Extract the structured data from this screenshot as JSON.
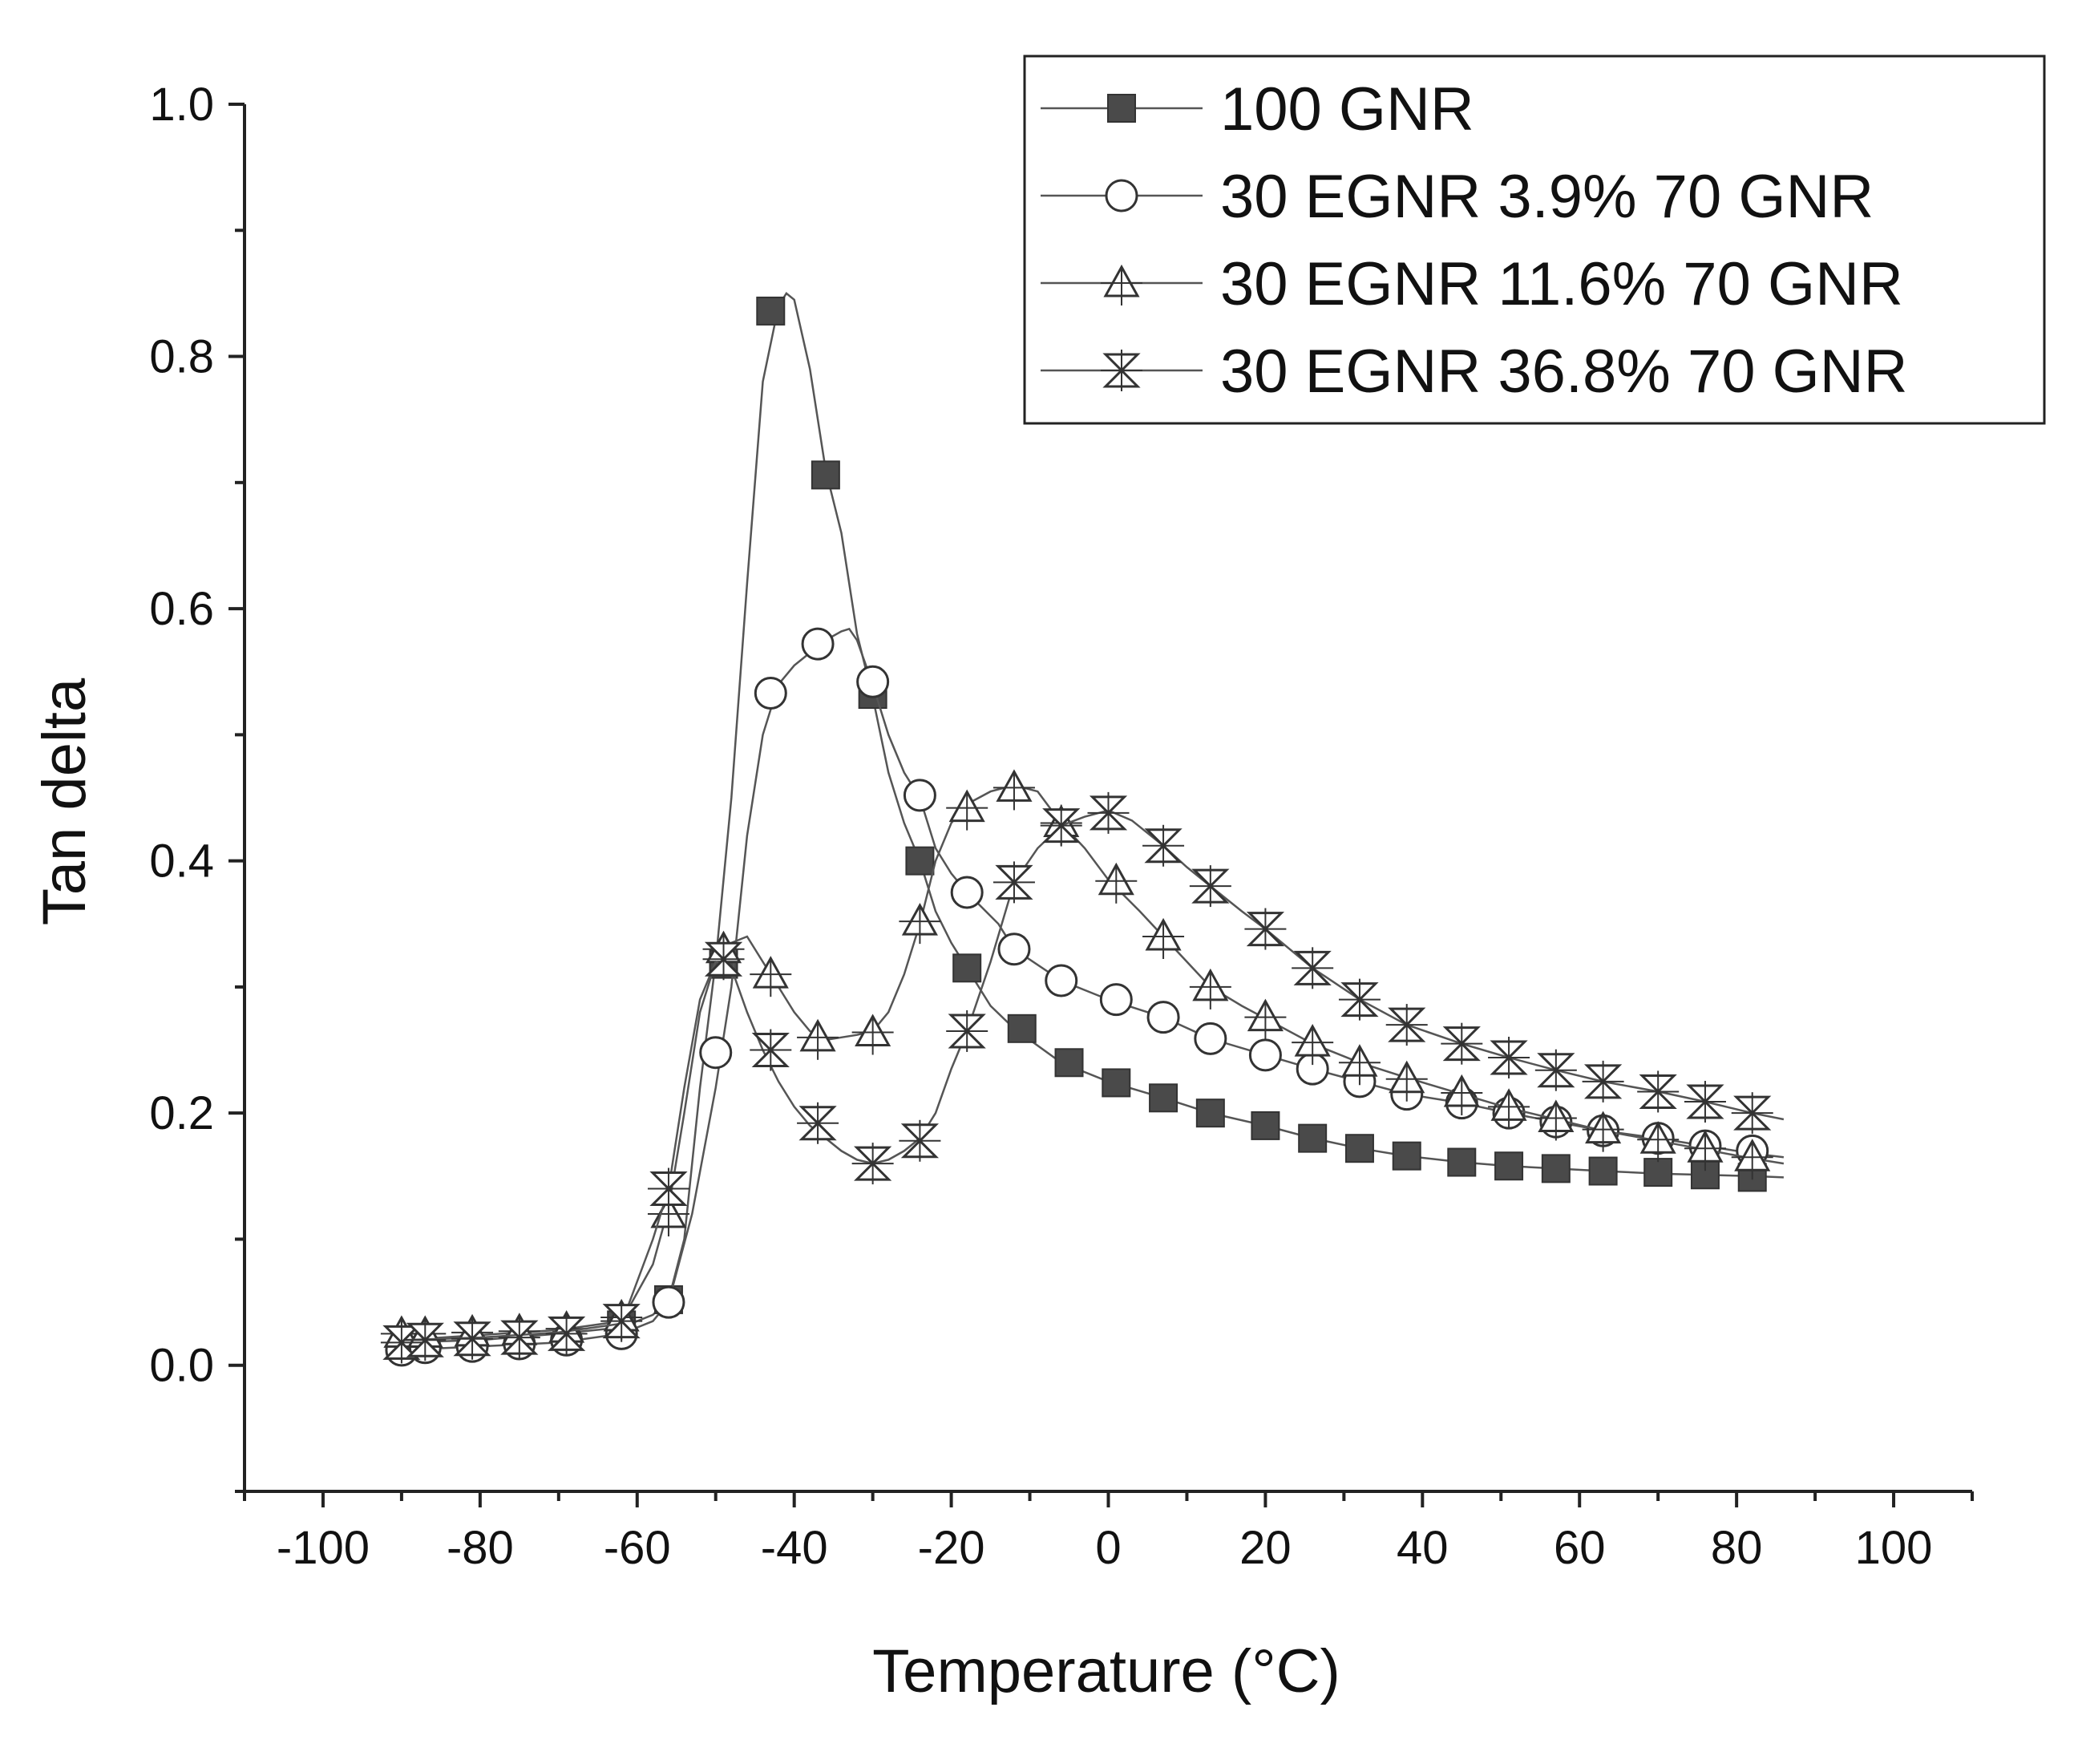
{
  "chart_data": {
    "type": "line",
    "title": "",
    "xlabel": "Temperature (°C)",
    "ylabel": "Tan delta",
    "xlim": [
      -110,
      110
    ],
    "ylim": [
      -0.1,
      1.0
    ],
    "xticks": [
      -100,
      -80,
      -60,
      -40,
      -20,
      0,
      20,
      40,
      60,
      80,
      100
    ],
    "xtick_labels": [
      "-100",
      "-80",
      "-60",
      "-40",
      "-20",
      "0",
      "20",
      "40",
      "60",
      "80",
      "100"
    ],
    "yticks": [
      0.0,
      0.2,
      0.4,
      0.6,
      0.8,
      1.0
    ],
    "ytick_labels": [
      "0.0",
      "0.2",
      "0.4",
      "0.6",
      "0.8",
      "1.0"
    ],
    "grid": false,
    "legend_position": "top-right",
    "colors": {
      "line": "#555555",
      "marker_fill": "#4a4a4a",
      "marker_stroke": "#333333",
      "axis": "#222222"
    },
    "series": [
      {
        "name": "100 GNR",
        "marker": "square-filled",
        "curve": [
          [
            -90,
            0.018
          ],
          [
            -80,
            0.02
          ],
          [
            -70,
            0.025
          ],
          [
            -62,
            0.03
          ],
          [
            -58,
            0.04
          ],
          [
            -56,
            0.052
          ],
          [
            -54,
            0.1
          ],
          [
            -52,
            0.22
          ],
          [
            -50,
            0.32
          ],
          [
            -48,
            0.45
          ],
          [
            -46,
            0.62
          ],
          [
            -44,
            0.78
          ],
          [
            -42,
            0.84
          ],
          [
            -41,
            0.85
          ],
          [
            -40,
            0.845
          ],
          [
            -38,
            0.79
          ],
          [
            -36,
            0.71
          ],
          [
            -34,
            0.66
          ],
          [
            -32,
            0.58
          ],
          [
            -30,
            0.53
          ],
          [
            -28,
            0.47
          ],
          [
            -26,
            0.43
          ],
          [
            -24,
            0.4
          ],
          [
            -22,
            0.36
          ],
          [
            -20,
            0.335
          ],
          [
            -18,
            0.315
          ],
          [
            -15,
            0.285
          ],
          [
            -12,
            0.267
          ],
          [
            -6,
            0.24
          ],
          [
            0,
            0.225
          ],
          [
            7,
            0.212
          ],
          [
            13,
            0.2
          ],
          [
            20,
            0.19
          ],
          [
            26,
            0.18
          ],
          [
            32,
            0.172
          ],
          [
            38,
            0.166
          ],
          [
            45,
            0.161
          ],
          [
            51,
            0.158
          ],
          [
            57,
            0.156
          ],
          [
            63,
            0.154
          ],
          [
            70,
            0.152
          ],
          [
            76,
            0.151
          ],
          [
            82,
            0.15
          ],
          [
            86,
            0.149
          ]
        ],
        "markers": [
          [
            -62,
            0.032
          ],
          [
            -56,
            0.052
          ],
          [
            -49,
            0.318
          ],
          [
            -43,
            0.836
          ],
          [
            -36,
            0.706
          ],
          [
            -30,
            0.532
          ],
          [
            -24,
            0.4
          ],
          [
            -18,
            0.315
          ],
          [
            -11,
            0.267
          ],
          [
            -5,
            0.24
          ],
          [
            1,
            0.224
          ],
          [
            7,
            0.212
          ],
          [
            13,
            0.2
          ],
          [
            20,
            0.19
          ],
          [
            26,
            0.18
          ],
          [
            32,
            0.172
          ],
          [
            38,
            0.166
          ],
          [
            45,
            0.161
          ],
          [
            51,
            0.158
          ],
          [
            57,
            0.156
          ],
          [
            63,
            0.154
          ],
          [
            70,
            0.153
          ],
          [
            76,
            0.151
          ],
          [
            82,
            0.149
          ]
        ]
      },
      {
        "name": "30 EGNR 3.9% 70 GNR",
        "marker": "circle-open",
        "curve": [
          [
            -90,
            0.012
          ],
          [
            -80,
            0.015
          ],
          [
            -70,
            0.018
          ],
          [
            -62,
            0.025
          ],
          [
            -58,
            0.035
          ],
          [
            -56,
            0.05
          ],
          [
            -53,
            0.12
          ],
          [
            -50,
            0.22
          ],
          [
            -48,
            0.3
          ],
          [
            -46,
            0.42
          ],
          [
            -44,
            0.5
          ],
          [
            -42,
            0.54
          ],
          [
            -40,
            0.555
          ],
          [
            -38,
            0.565
          ],
          [
            -36,
            0.575
          ],
          [
            -34,
            0.582
          ],
          [
            -33,
            0.584
          ],
          [
            -32,
            0.575
          ],
          [
            -30,
            0.54
          ],
          [
            -28,
            0.5
          ],
          [
            -26,
            0.47
          ],
          [
            -24,
            0.45
          ],
          [
            -22,
            0.41
          ],
          [
            -20,
            0.39
          ],
          [
            -18,
            0.375
          ],
          [
            -14,
            0.35
          ],
          [
            -12,
            0.33
          ],
          [
            -6,
            0.305
          ],
          [
            0,
            0.29
          ],
          [
            7,
            0.276
          ],
          [
            13,
            0.259
          ],
          [
            20,
            0.246
          ],
          [
            26,
            0.235
          ],
          [
            32,
            0.225
          ],
          [
            38,
            0.215
          ],
          [
            45,
            0.208
          ],
          [
            51,
            0.2
          ],
          [
            57,
            0.193
          ],
          [
            63,
            0.186
          ],
          [
            70,
            0.18
          ],
          [
            76,
            0.174
          ],
          [
            82,
            0.168
          ],
          [
            86,
            0.165
          ]
        ],
        "markers": [
          [
            -90,
            0.012
          ],
          [
            -87,
            0.014
          ],
          [
            -81,
            0.015
          ],
          [
            -75,
            0.017
          ],
          [
            -69,
            0.02
          ],
          [
            -62,
            0.025
          ],
          [
            -56,
            0.05
          ],
          [
            -50,
            0.248
          ],
          [
            -43,
            0.533
          ],
          [
            -37,
            0.572
          ],
          [
            -30,
            0.542
          ],
          [
            -24,
            0.452
          ],
          [
            -18,
            0.375
          ],
          [
            -12,
            0.33
          ],
          [
            -6,
            0.305
          ],
          [
            1,
            0.29
          ],
          [
            7,
            0.276
          ],
          [
            13,
            0.259
          ],
          [
            20,
            0.246
          ],
          [
            26,
            0.235
          ],
          [
            32,
            0.225
          ],
          [
            38,
            0.215
          ],
          [
            45,
            0.208
          ],
          [
            51,
            0.2
          ],
          [
            57,
            0.193
          ],
          [
            63,
            0.186
          ],
          [
            70,
            0.18
          ],
          [
            76,
            0.174
          ],
          [
            82,
            0.17
          ]
        ]
      },
      {
        "name": "30 EGNR 11.6% 70 GNR",
        "marker": "triangle-open",
        "curve": [
          [
            -90,
            0.02
          ],
          [
            -80,
            0.024
          ],
          [
            -70,
            0.028
          ],
          [
            -62,
            0.035
          ],
          [
            -58,
            0.08
          ],
          [
            -56,
            0.125
          ],
          [
            -54,
            0.2
          ],
          [
            -52,
            0.28
          ],
          [
            -50,
            0.32
          ],
          [
            -48,
            0.335
          ],
          [
            -46,
            0.34
          ],
          [
            -44,
            0.32
          ],
          [
            -42,
            0.3
          ],
          [
            -40,
            0.28
          ],
          [
            -38,
            0.265
          ],
          [
            -36,
            0.258
          ],
          [
            -34,
            0.26
          ],
          [
            -32,
            0.262
          ],
          [
            -30,
            0.265
          ],
          [
            -28,
            0.28
          ],
          [
            -26,
            0.31
          ],
          [
            -24,
            0.35
          ],
          [
            -22,
            0.4
          ],
          [
            -20,
            0.43
          ],
          [
            -18,
            0.445
          ],
          [
            -15,
            0.455
          ],
          [
            -12,
            0.46
          ],
          [
            -9,
            0.455
          ],
          [
            -6,
            0.43
          ],
          [
            -3,
            0.41
          ],
          [
            0,
            0.385
          ],
          [
            4,
            0.36
          ],
          [
            7,
            0.34
          ],
          [
            10,
            0.32
          ],
          [
            13,
            0.3
          ],
          [
            17,
            0.285
          ],
          [
            20,
            0.275
          ],
          [
            26,
            0.255
          ],
          [
            32,
            0.24
          ],
          [
            38,
            0.228
          ],
          [
            45,
            0.215
          ],
          [
            51,
            0.204
          ],
          [
            57,
            0.195
          ],
          [
            63,
            0.186
          ],
          [
            70,
            0.178
          ],
          [
            76,
            0.171
          ],
          [
            82,
            0.164
          ],
          [
            86,
            0.16
          ]
        ],
        "markers": [
          [
            -90,
            0.025
          ],
          [
            -87,
            0.025
          ],
          [
            -81,
            0.026
          ],
          [
            -75,
            0.027
          ],
          [
            -69,
            0.029
          ],
          [
            -62,
            0.038
          ],
          [
            -56,
            0.12
          ],
          [
            -49,
            0.33
          ],
          [
            -43,
            0.31
          ],
          [
            -37,
            0.26
          ],
          [
            -30,
            0.264
          ],
          [
            -24,
            0.352
          ],
          [
            -18,
            0.442
          ],
          [
            -12,
            0.458
          ],
          [
            -6,
            0.43
          ],
          [
            1,
            0.384
          ],
          [
            7,
            0.34
          ],
          [
            13,
            0.3
          ],
          [
            20,
            0.276
          ],
          [
            26,
            0.256
          ],
          [
            32,
            0.24
          ],
          [
            38,
            0.227
          ],
          [
            45,
            0.216
          ],
          [
            51,
            0.205
          ],
          [
            57,
            0.196
          ],
          [
            63,
            0.187
          ],
          [
            70,
            0.179
          ],
          [
            76,
            0.172
          ],
          [
            82,
            0.165
          ]
        ]
      },
      {
        "name": "30 EGNR 36.8% 70 GNR",
        "marker": "hourglass-open",
        "curve": [
          [
            -90,
            0.02
          ],
          [
            -80,
            0.022
          ],
          [
            -70,
            0.026
          ],
          [
            -62,
            0.033
          ],
          [
            -58,
            0.1
          ],
          [
            -56,
            0.14
          ],
          [
            -54,
            0.22
          ],
          [
            -52,
            0.29
          ],
          [
            -50,
            0.32
          ],
          [
            -48,
            0.315
          ],
          [
            -46,
            0.28
          ],
          [
            -44,
            0.25
          ],
          [
            -42,
            0.225
          ],
          [
            -40,
            0.205
          ],
          [
            -38,
            0.19
          ],
          [
            -36,
            0.18
          ],
          [
            -34,
            0.17
          ],
          [
            -32,
            0.163
          ],
          [
            -30,
            0.16
          ],
          [
            -28,
            0.163
          ],
          [
            -26,
            0.17
          ],
          [
            -24,
            0.18
          ],
          [
            -22,
            0.2
          ],
          [
            -20,
            0.235
          ],
          [
            -18,
            0.265
          ],
          [
            -15,
            0.32
          ],
          [
            -12,
            0.383
          ],
          [
            -9,
            0.41
          ],
          [
            -6,
            0.428
          ],
          [
            -3,
            0.435
          ],
          [
            0,
            0.44
          ],
          [
            3,
            0.432
          ],
          [
            7,
            0.412
          ],
          [
            10,
            0.395
          ],
          [
            13,
            0.38
          ],
          [
            17,
            0.36
          ],
          [
            20,
            0.346
          ],
          [
            26,
            0.315
          ],
          [
            32,
            0.29
          ],
          [
            38,
            0.27
          ],
          [
            45,
            0.255
          ],
          [
            51,
            0.244
          ],
          [
            57,
            0.234
          ],
          [
            63,
            0.225
          ],
          [
            70,
            0.217
          ],
          [
            76,
            0.209
          ],
          [
            82,
            0.2
          ],
          [
            86,
            0.195
          ]
        ],
        "markers": [
          [
            -90,
            0.018
          ],
          [
            -87,
            0.02
          ],
          [
            -81,
            0.021
          ],
          [
            -75,
            0.022
          ],
          [
            -69,
            0.025
          ],
          [
            -62,
            0.035
          ],
          [
            -56,
            0.14
          ],
          [
            -49,
            0.322
          ],
          [
            -43,
            0.25
          ],
          [
            -37,
            0.192
          ],
          [
            -30,
            0.16
          ],
          [
            -24,
            0.178
          ],
          [
            -18,
            0.265
          ],
          [
            -12,
            0.383
          ],
          [
            -6,
            0.428
          ],
          [
            0,
            0.438
          ],
          [
            7,
            0.412
          ],
          [
            13,
            0.38
          ],
          [
            20,
            0.346
          ],
          [
            26,
            0.315
          ],
          [
            32,
            0.29
          ],
          [
            38,
            0.27
          ],
          [
            45,
            0.255
          ],
          [
            51,
            0.244
          ],
          [
            57,
            0.234
          ],
          [
            63,
            0.225
          ],
          [
            70,
            0.217
          ],
          [
            76,
            0.209
          ],
          [
            82,
            0.2
          ]
        ]
      }
    ]
  }
}
